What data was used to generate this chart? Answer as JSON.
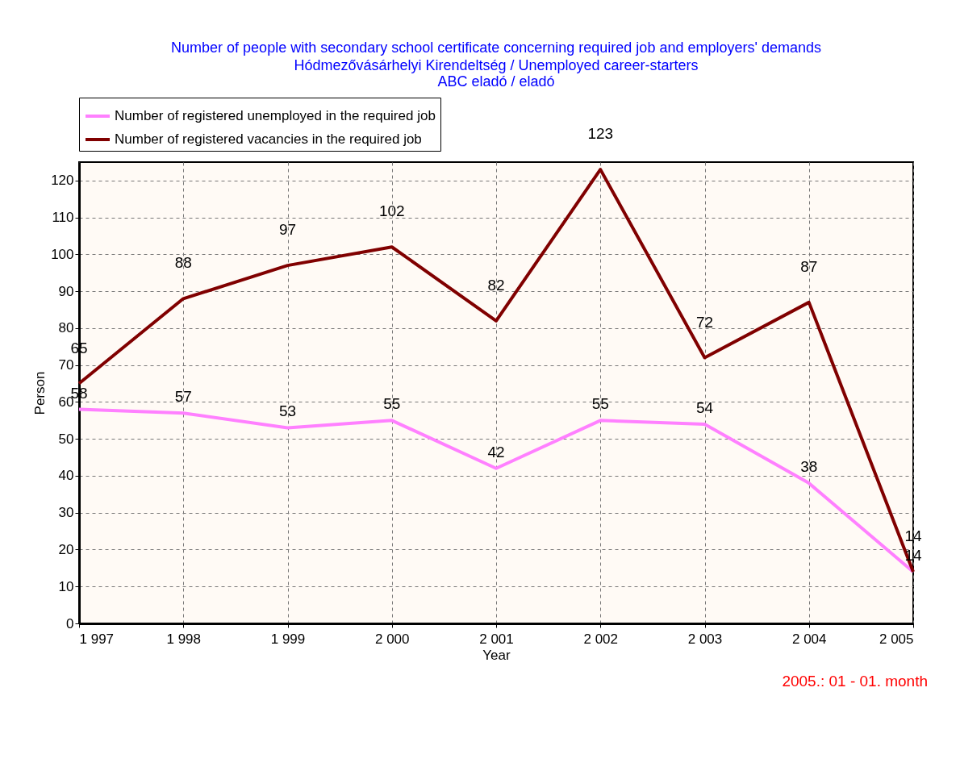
{
  "chart_data": {
    "type": "line",
    "title": "Number of people with secondary school certificate concerning required job and employers' demands",
    "subtitle": "Hódmezővásárhelyi Kirendeltség / Unemployed career-starters\nABC eladó / eladó",
    "xlabel": "Year",
    "ylabel": "Person",
    "x": [
      1997,
      1998,
      1999,
      2000,
      2001,
      2002,
      2003,
      2004,
      2005
    ],
    "series": [
      {
        "name": "Number of registered unemployed in the required job",
        "color": "#ff80ff",
        "values": [
          58,
          57,
          53,
          55,
          42,
          55,
          54,
          38,
          14
        ]
      },
      {
        "name": "Number of registered vacancies in the required job",
        "color": "#800000",
        "values": [
          65,
          88,
          97,
          102,
          82,
          123,
          72,
          87,
          14
        ]
      }
    ],
    "xlim": [
      1997,
      2005
    ],
    "xticks": [
      {
        "value": 1997,
        "label": "1 997"
      },
      {
        "value": 1998,
        "label": "1 998"
      },
      {
        "value": 1999,
        "label": "1 999"
      },
      {
        "value": 2000,
        "label": "2 000"
      },
      {
        "value": 2001,
        "label": "2 001"
      },
      {
        "value": 2002,
        "label": "2 002"
      },
      {
        "value": 2003,
        "label": "2 003"
      },
      {
        "value": 2004,
        "label": "2 004"
      },
      {
        "value": 2005,
        "label": "2 005"
      }
    ],
    "ylim": [
      0,
      125
    ],
    "yticks": [
      0,
      10,
      20,
      30,
      40,
      50,
      60,
      70,
      80,
      90,
      100,
      110,
      120
    ],
    "grid": true,
    "legend": "top",
    "data_labels": true,
    "marker": "none",
    "line_style": "solid",
    "annotations": [
      "2005.:  01 - 01. month"
    ]
  }
}
